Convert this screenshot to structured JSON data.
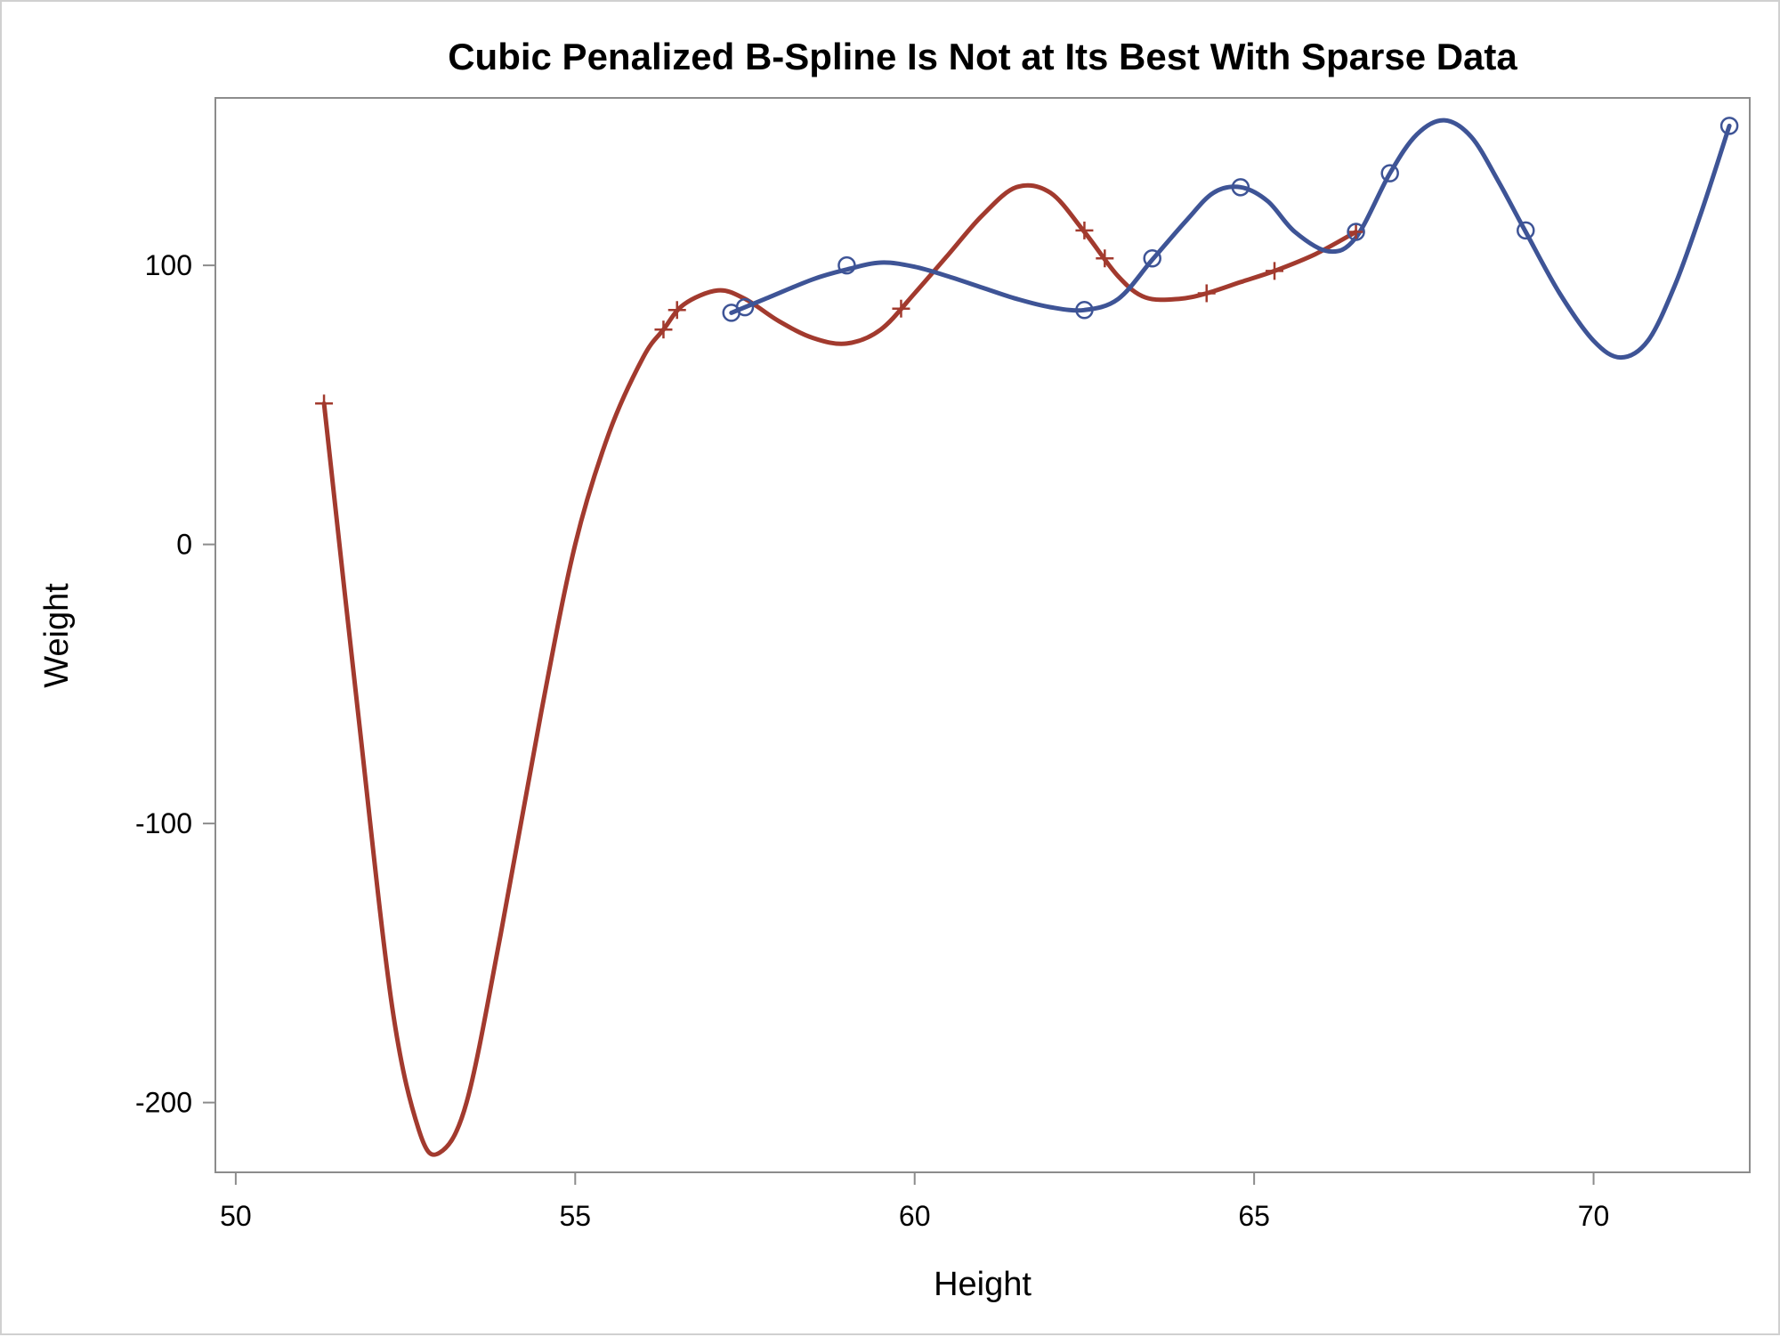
{
  "chart_data": {
    "type": "scatter",
    "title": "Cubic Penalized B-Spline Is Not at Its Best With Sparse Data",
    "xlabel": "Height",
    "ylabel": "Weight",
    "xlim": [
      49.7,
      72.3
    ],
    "ylim": [
      -225,
      160
    ],
    "xticks": [
      50,
      55,
      60,
      65,
      70
    ],
    "yticks": [
      -200,
      -100,
      0,
      100
    ],
    "grid": false,
    "legend": "none",
    "series": [
      {
        "marker": "plus",
        "color": "#a23a2e",
        "points": [
          {
            "x": 51.3,
            "y": 50.5
          },
          {
            "x": 56.3,
            "y": 77.0
          },
          {
            "x": 56.5,
            "y": 84.0
          },
          {
            "x": 59.8,
            "y": 84.5
          },
          {
            "x": 62.5,
            "y": 112.5
          },
          {
            "x": 62.8,
            "y": 102.5
          },
          {
            "x": 64.3,
            "y": 90.0
          },
          {
            "x": 65.3,
            "y": 98.0
          },
          {
            "x": 66.5,
            "y": 112.0
          }
        ],
        "curve": [
          {
            "x": 51.3,
            "y": 50.5
          },
          {
            "x": 51.8,
            "y": -60
          },
          {
            "x": 52.3,
            "y": -165
          },
          {
            "x": 52.7,
            "y": -210
          },
          {
            "x": 53.0,
            "y": -218
          },
          {
            "x": 53.4,
            "y": -200
          },
          {
            "x": 53.9,
            "y": -140
          },
          {
            "x": 54.5,
            "y": -60
          },
          {
            "x": 55.0,
            "y": 0
          },
          {
            "x": 55.5,
            "y": 40
          },
          {
            "x": 56.0,
            "y": 67
          },
          {
            "x": 56.3,
            "y": 77
          },
          {
            "x": 56.6,
            "y": 86
          },
          {
            "x": 57.1,
            "y": 91
          },
          {
            "x": 57.5,
            "y": 88
          },
          {
            "x": 58.0,
            "y": 80
          },
          {
            "x": 58.5,
            "y": 74
          },
          {
            "x": 59.0,
            "y": 72
          },
          {
            "x": 59.5,
            "y": 77
          },
          {
            "x": 60.0,
            "y": 90
          },
          {
            "x": 60.5,
            "y": 104
          },
          {
            "x": 61.0,
            "y": 118
          },
          {
            "x": 61.5,
            "y": 128
          },
          {
            "x": 62.0,
            "y": 126
          },
          {
            "x": 62.5,
            "y": 112
          },
          {
            "x": 63.0,
            "y": 96
          },
          {
            "x": 63.4,
            "y": 88.5
          },
          {
            "x": 63.9,
            "y": 88
          },
          {
            "x": 64.3,
            "y": 90
          },
          {
            "x": 64.8,
            "y": 94
          },
          {
            "x": 65.3,
            "y": 98
          },
          {
            "x": 65.9,
            "y": 104
          },
          {
            "x": 66.5,
            "y": 112
          }
        ]
      },
      {
        "marker": "circle",
        "color": "#3e5496",
        "points": [
          {
            "x": 57.3,
            "y": 83.0
          },
          {
            "x": 57.5,
            "y": 85.0
          },
          {
            "x": 59.0,
            "y": 100.0
          },
          {
            "x": 62.5,
            "y": 84.0
          },
          {
            "x": 63.5,
            "y": 102.5
          },
          {
            "x": 64.8,
            "y": 128.0
          },
          {
            "x": 66.5,
            "y": 112.0
          },
          {
            "x": 67.0,
            "y": 133.0
          },
          {
            "x": 69.0,
            "y": 112.5
          },
          {
            "x": 72.0,
            "y": 150.0
          }
        ],
        "curve": [
          {
            "x": 57.3,
            "y": 83
          },
          {
            "x": 57.8,
            "y": 88
          },
          {
            "x": 58.5,
            "y": 95
          },
          {
            "x": 59.0,
            "y": 98.5
          },
          {
            "x": 59.5,
            "y": 101
          },
          {
            "x": 60.0,
            "y": 99.5
          },
          {
            "x": 60.5,
            "y": 96
          },
          {
            "x": 61.0,
            "y": 92
          },
          {
            "x": 61.5,
            "y": 88
          },
          {
            "x": 62.0,
            "y": 85
          },
          {
            "x": 62.5,
            "y": 84
          },
          {
            "x": 63.0,
            "y": 88
          },
          {
            "x": 63.5,
            "y": 102
          },
          {
            "x": 64.0,
            "y": 116
          },
          {
            "x": 64.4,
            "y": 126
          },
          {
            "x": 64.8,
            "y": 128
          },
          {
            "x": 65.2,
            "y": 123
          },
          {
            "x": 65.6,
            "y": 112
          },
          {
            "x": 66.1,
            "y": 105
          },
          {
            "x": 66.5,
            "y": 110
          },
          {
            "x": 67.0,
            "y": 133
          },
          {
            "x": 67.4,
            "y": 147
          },
          {
            "x": 67.8,
            "y": 152
          },
          {
            "x": 68.2,
            "y": 146
          },
          {
            "x": 68.6,
            "y": 130
          },
          {
            "x": 69.0,
            "y": 112
          },
          {
            "x": 69.5,
            "y": 90
          },
          {
            "x": 70.0,
            "y": 73
          },
          {
            "x": 70.4,
            "y": 67
          },
          {
            "x": 70.8,
            "y": 73
          },
          {
            "x": 71.2,
            "y": 93
          },
          {
            "x": 71.6,
            "y": 120
          },
          {
            "x": 72.0,
            "y": 150
          }
        ]
      }
    ]
  }
}
